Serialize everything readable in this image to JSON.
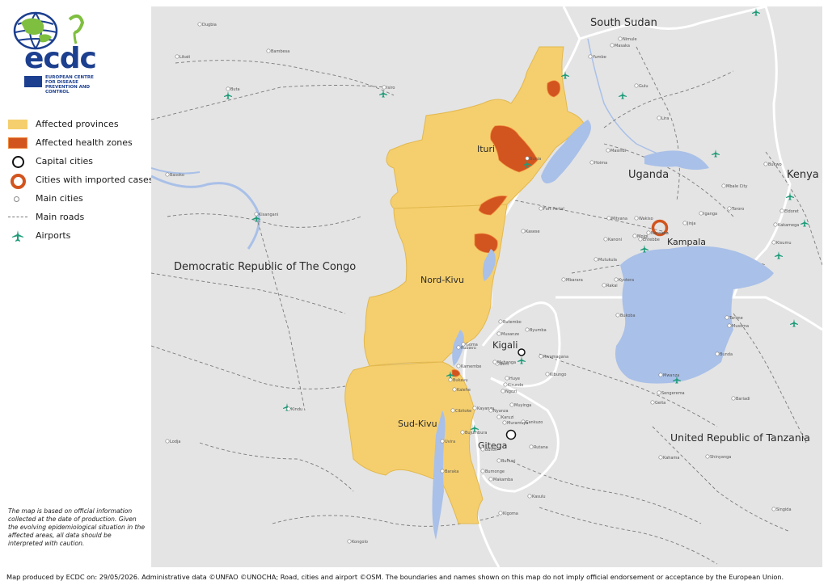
{
  "logo": {
    "text": "ecdc",
    "subtitle": "EUROPEAN CENTRE FOR DISEASE PREVENTION AND CONTROL"
  },
  "legend": [
    {
      "key": "provinces",
      "label": "Affected provinces",
      "color": "#f5cf6e"
    },
    {
      "key": "zones",
      "label": "Affected health zones",
      "color": "#d2541e"
    },
    {
      "key": "capitals",
      "label": "Capital cities"
    },
    {
      "key": "imported",
      "label": "Cities with imported cases",
      "color": "#d2541e"
    },
    {
      "key": "cities",
      "label": "Main cities"
    },
    {
      "key": "roads",
      "label": "Main roads"
    },
    {
      "key": "airports",
      "label": "Airports",
      "color": "#1f9c7a"
    }
  ],
  "disclaimer": "The map is based on official information collected at the date of production. Given the evolving epidemiological situation in the affected areas, all data should be interpreted with caution.",
  "credits": "Map produced by ECDC on: 29/05/2026. Administrative data ©UNFAO  ©UNOCHA;  Road, cities and airport ©OSM. The boundaries and names shown on this map do not imply official endorsement or acceptance by the European Union.",
  "map": {
    "countries": [
      "South Sudan",
      "Uganda",
      "Kenya",
      "Democratic Republic of The Congo",
      "United Republic of Tanzania"
    ],
    "provinces": [
      "Ituri",
      "Nord-Kivu",
      "Sud-Kivu"
    ],
    "capitals": [
      "Kigali",
      "Kampala",
      "Gitega"
    ],
    "cities": [
      "Dugbia",
      "Likati",
      "Bambesa",
      "Buta",
      "Isiro",
      "Basoko",
      "Kisangani",
      "Kindu",
      "Lodja",
      "Kongolo",
      "Yumbe",
      "Masaka",
      "Nimule",
      "Gulu",
      "Lira",
      "Masindi",
      "Hoima",
      "Bunia",
      "Fort Portal",
      "Kasese",
      "Mityana",
      "Wakiso",
      "Nansana",
      "Mpigi",
      "Entebbe",
      "Kanoni",
      "Mutukula",
      "Mbarara",
      "Jinja",
      "Iganga",
      "Mbale City",
      "Tororo",
      "Bukwo",
      "Eldoret",
      "Kakamega",
      "Kisumu",
      "Tarime",
      "Musoma",
      "Bukoba",
      "Bunda",
      "Mwanza",
      "Sengerema",
      "Geita",
      "Bariadi",
      "Shinyanga",
      "Kahama",
      "Kigoma",
      "Kasulu",
      "Singida",
      "Goma",
      "Butembo",
      "Beni",
      "Bukavu",
      "Uvira",
      "Baraka",
      "Bujumbura",
      "Cibitoke",
      "Kayanza",
      "Ngozi",
      "Muyinga",
      "Karuzi",
      "Cankuzo",
      "Muramvya",
      "Buhuni",
      "Bururi",
      "Bumonge",
      "Makamba",
      "Huye",
      "Muhanga",
      "Byumba",
      "Rwamagana",
      "Rubavu",
      "Musanze",
      "Kirundo",
      "Rutana",
      "Nyanza",
      "Kibungo",
      "Kalehe",
      "Kamembe",
      "Kyotera",
      "Rakai"
    ]
  }
}
